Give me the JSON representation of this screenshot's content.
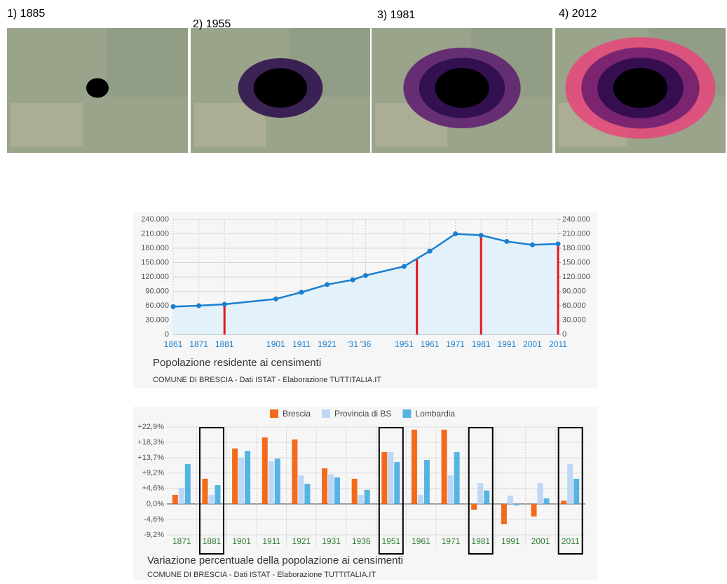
{
  "maps": [
    {
      "label": "1) 1885"
    },
    {
      "label": "2) 1955"
    },
    {
      "label": "3) 1981"
    },
    {
      "label": "4) 2012"
    }
  ],
  "chart_data": [
    {
      "type": "line",
      "title": "Popolazione residente ai censimenti",
      "subtitle": "COMUNE DI BRESCIA - Dati ISTAT - Elaborazione TUTTITALIA.IT",
      "x": [
        1861,
        1871,
        1881,
        1901,
        1911,
        1921,
        1931,
        1936,
        1951,
        1961,
        1971,
        1981,
        1991,
        2001,
        2011
      ],
      "values": [
        58000,
        60000,
        63000,
        74000,
        88000,
        104000,
        114000,
        123000,
        142000,
        174000,
        210000,
        207000,
        194000,
        187000,
        189000
      ],
      "color": "#1a7fcf",
      "area_color": "#e3f1fb",
      "highlight_color": "#e8141b",
      "highlight_x": [
        1881,
        1956,
        1981,
        2011
      ],
      "xlim": [
        1861,
        2011
      ],
      "xticks": [
        1861,
        1871,
        1881,
        1901,
        1911,
        1921,
        {
          "value": 1931,
          "label": "'31"
        },
        {
          "value": 1936,
          "label": "'36"
        },
        1951,
        1961,
        1971,
        1981,
        1991,
        2001,
        2011
      ],
      "ylim": [
        0,
        240000
      ],
      "yticks": [
        0,
        {
          "value": 30000,
          "label": "30.000"
        },
        {
          "value": 60000,
          "label": "60.000"
        },
        {
          "value": 90000,
          "label": "90.000"
        },
        {
          "value": 120000,
          "label": "120.000"
        },
        {
          "value": 150000,
          "label": "150.000"
        },
        {
          "value": 180000,
          "label": "180.000"
        },
        {
          "value": 210000,
          "label": "210.000"
        },
        {
          "value": 240000,
          "label": "240.000"
        }
      ],
      "y2lim": [
        0,
        240000
      ],
      "y2ticks": [
        0,
        {
          "value": 30000,
          "label": "30.000"
        },
        {
          "value": 60000,
          "label": "60.000"
        },
        {
          "value": 90000,
          "label": "90.000"
        },
        {
          "value": 120000,
          "label": "120.000"
        },
        {
          "value": 150000,
          "label": "150.000"
        },
        {
          "value": 180000,
          "label": "180.000"
        },
        {
          "value": 210000,
          "label": "210.000"
        },
        {
          "value": 240000,
          "label": "240.000"
        }
      ],
      "grid": true
    },
    {
      "type": "bar",
      "title": "Variazione percentuale della popolazione ai censimenti",
      "subtitle": "COMUNE DI BRESCIA - Dati ISTAT - Elaborazione TUTTITALIA.IT",
      "categories": [
        "1871",
        "1881",
        "1901",
        "1911",
        "1921",
        "1931",
        "1936",
        "1951",
        "1961",
        "1971",
        "1981",
        "1991",
        "2001",
        "2011"
      ],
      "series": [
        {
          "name": "Brescia",
          "color": "#f26b1d",
          "values": [
            2.7,
            7.5,
            16.5,
            19.8,
            19.2,
            10.6,
            7.5,
            15.4,
            22.1,
            22.1,
            -1.7,
            -6.0,
            -3.7,
            1.0
          ]
        },
        {
          "name": "Provincia di BS",
          "color": "#bdd7f5",
          "values": [
            4.8,
            2.7,
            13.8,
            12.7,
            8.5,
            8.8,
            2.7,
            15.4,
            2.7,
            8.5,
            6.2,
            2.5,
            6.2,
            11.9
          ]
        },
        {
          "name": "Lombardia",
          "color": "#56b4e3",
          "values": [
            11.9,
            5.6,
            15.8,
            13.5,
            6.0,
            7.9,
            4.2,
            12.5,
            13.1,
            15.4,
            4.0,
            -0.4,
            1.7,
            7.5
          ]
        }
      ],
      "highlight": [
        1,
        7,
        10,
        13
      ],
      "ylim": [
        -9.2,
        22.9
      ],
      "yticks": [
        {
          "value": -9.2,
          "label": "-9,2%"
        },
        {
          "value": -4.6,
          "label": "-4,6%"
        },
        {
          "value": 0,
          "label": "0,0%"
        },
        {
          "value": 4.6,
          "label": "+4,6%"
        },
        {
          "value": 9.2,
          "label": "+9,2%"
        },
        {
          "value": 13.7,
          "label": "+13,7%"
        },
        {
          "value": 18.3,
          "label": "+18,3%"
        },
        {
          "value": 22.9,
          "label": "+22,9%"
        }
      ],
      "grid": true,
      "legend": "top"
    }
  ]
}
